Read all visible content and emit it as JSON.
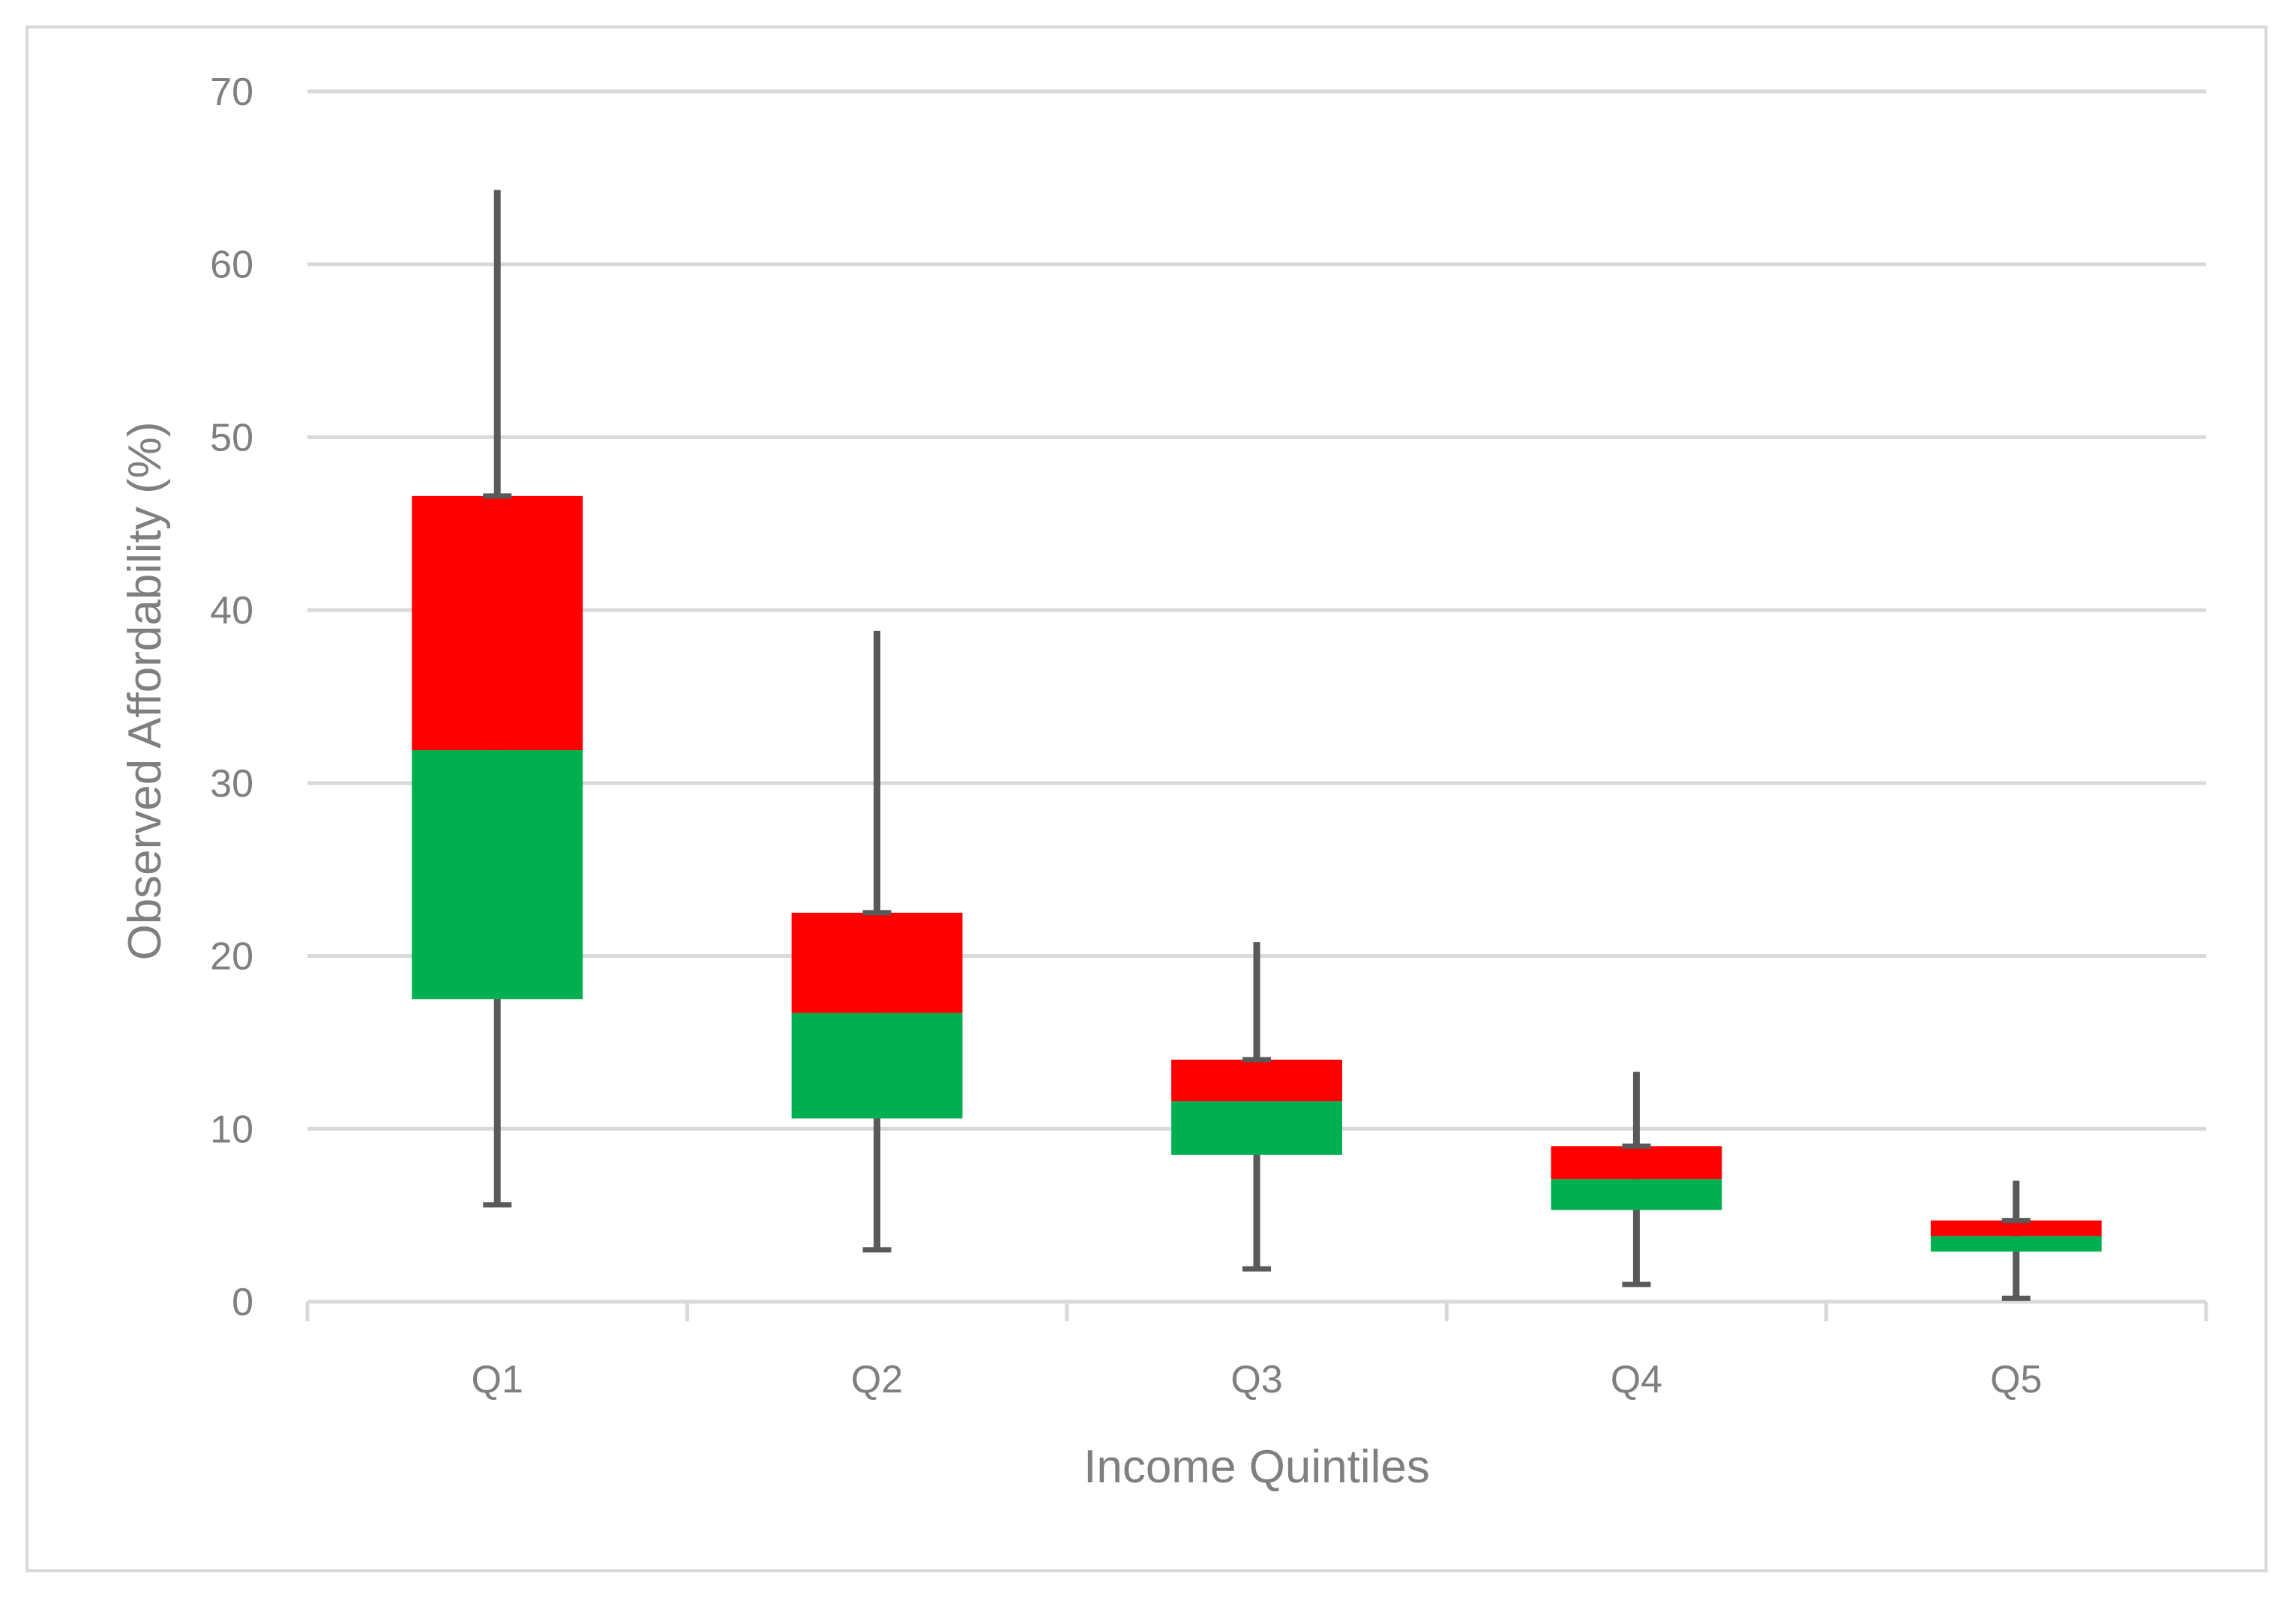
{
  "chart_data": {
    "type": "box",
    "title": "",
    "xlabel": "Income Quintiles",
    "ylabel": "Observed Affordability (%)",
    "ylim": [
      0,
      70
    ],
    "yticks": [
      0,
      10,
      20,
      30,
      40,
      50,
      60,
      70
    ],
    "grid": true,
    "categories": [
      "Q1",
      "Q2",
      "Q3",
      "Q4",
      "Q5"
    ],
    "boxes": [
      {
        "category": "Q1",
        "min": 5.6,
        "q1": 17.5,
        "median": 31.9,
        "q3": 46.6,
        "max": 64.3
      },
      {
        "category": "Q2",
        "min": 3.0,
        "q1": 10.6,
        "median": 16.7,
        "q3": 22.5,
        "max": 38.8
      },
      {
        "category": "Q3",
        "min": 1.9,
        "q1": 8.5,
        "median": 11.6,
        "q3": 14.0,
        "max": 20.8
      },
      {
        "category": "Q4",
        "min": 1.0,
        "q1": 5.3,
        "median": 7.1,
        "q3": 9.0,
        "max": 13.3
      },
      {
        "category": "Q5",
        "min": 0.2,
        "q1": 2.9,
        "median": 3.8,
        "q3": 4.7,
        "max": 7.0
      }
    ],
    "colors": {
      "lower_box": "#00b050",
      "upper_box": "#ff0000",
      "whisker": "#595959",
      "grid": "#d9d9d9",
      "axis": "#d9d9d9",
      "text": "#7f7f7f"
    }
  }
}
